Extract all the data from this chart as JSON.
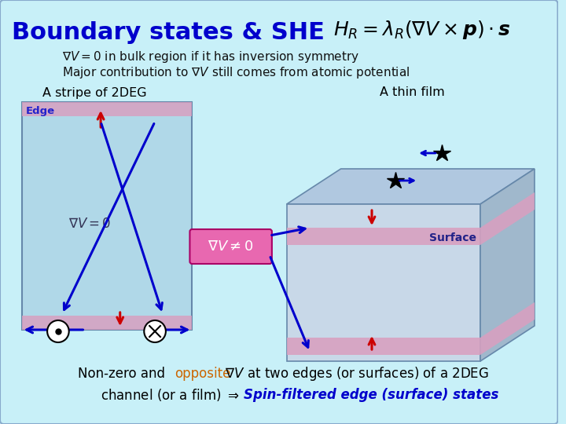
{
  "bg_color": "#c8f0f8",
  "title": "Boundary states & SHE",
  "title_color": "#0000cc",
  "title_fontsize": 22,
  "formula": "$H_R = \\lambda_R (\\nabla V \\times \\boldsymbol{p}) \\cdot \\boldsymbol{s}$",
  "line1": "$\\nabla V = 0$ in bulk region if it has inversion symmetry",
  "line2": "Major contribution to $\\nabla V$ still comes from atomic potential",
  "label_2deg": "A stripe of 2DEG",
  "label_film": "A thin film",
  "label_edge": "Edge",
  "label_surface": "Surface",
  "label_nv0": "$\\nabla V = 0$",
  "label_nvneq0": "$\\nabla V \\neq 0$",
  "bottom_text1": "Non-zero and ",
  "bottom_opposite": "opposite",
  "bottom_text2": " $\\nabla V$ at two edges (or surfaces) of a 2DEG",
  "bottom_text3": "channel (or a film) $\\Rightarrow$ ",
  "bottom_italic": "Spin-filtered edge (surface) states",
  "stripe_face_color": "#b0d8e8",
  "stripe_edge_color": "#8888aa",
  "stripe_pink_color": "#d8a0c0",
  "film_top_color": "#b0c8e0",
  "film_front_color": "#c8d8e8",
  "film_side_color": "#a0b8cc",
  "film_surface_color": "#d8a0c0",
  "box_nvneq0_color": "#e060a0",
  "arrow_red": "#cc0000",
  "arrow_blue": "#0000cc",
  "text_dark": "#111111",
  "text_orange": "#cc6600"
}
